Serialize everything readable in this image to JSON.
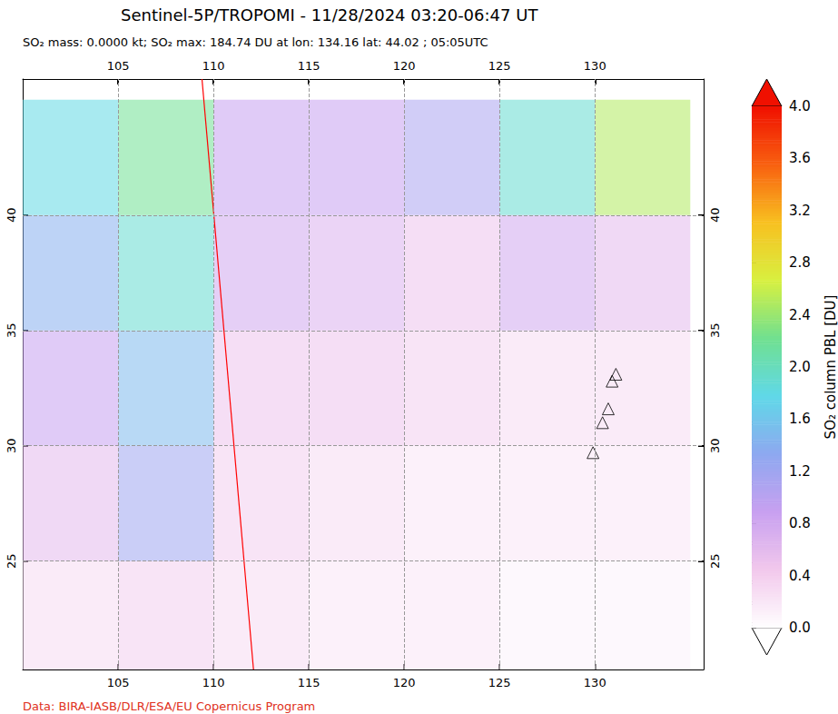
{
  "chart_data": {
    "type": "heatmap",
    "title": "Sentinel-5P/TROPOMI - 11/28/2024 03:20-06:47 UT",
    "subtitle": "SO₂ mass: 0.0000 kt; SO₂ max: 184.74 DU at lon: 134.16 lat: 44.02 ; 05:05UTC",
    "source": "Data: BIRA-IASB/DLR/ESA/EU Copernicus Program",
    "xlim": [
      100,
      135.7
    ],
    "ylim": [
      20.3,
      45.9
    ],
    "xticks": [
      105,
      110,
      115,
      120,
      125,
      130
    ],
    "yticks": [
      25,
      30,
      35,
      40
    ],
    "grid": true,
    "cells": {
      "x": [
        102.5,
        107.5,
        112.5,
        117.5,
        122.5,
        127.5,
        132.5
      ],
      "y": [
        22.5,
        27.5,
        32.5,
        37.5,
        42.5
      ],
      "values": [
        [
          0.3,
          0.4,
          0.3,
          0.2,
          0.2,
          0.1,
          0.1
        ],
        [
          0.6,
          1.2,
          0.4,
          0.3,
          0.2,
          0.2,
          0.2
        ],
        [
          0.9,
          1.5,
          0.5,
          0.5,
          0.4,
          0.3,
          0.3
        ],
        [
          1.4,
          1.9,
          0.8,
          0.7,
          0.5,
          0.8,
          0.6
        ],
        [
          1.8,
          2.2,
          0.9,
          0.9,
          1.1,
          1.9,
          2.5
        ]
      ]
    },
    "swath_edge": {
      "x": [
        109.4,
        112.1
      ],
      "y": [
        45.9,
        20.3
      ],
      "color": "#ff0000"
    },
    "volcanoes": {
      "x": [
        131.1,
        130.9,
        130.7,
        130.4,
        129.9
      ],
      "y": [
        33.1,
        32.8,
        31.6,
        31.0,
        29.7
      ],
      "marker": "triangle"
    },
    "colorbar": {
      "label": "SO₂ column PBL [DU]",
      "range": [
        0,
        4
      ],
      "ticks": [
        {
          "value": 0,
          "label": "0.0"
        },
        {
          "value": 0.4,
          "label": "0.4"
        },
        {
          "value": 0.8,
          "label": "0.8"
        },
        {
          "value": 1.2,
          "label": "1.2"
        },
        {
          "value": 1.6,
          "label": "1.6"
        },
        {
          "value": 2,
          "label": "2.0"
        },
        {
          "value": 2.4,
          "label": "2.4"
        },
        {
          "value": 2.8,
          "label": "2.8"
        },
        {
          "value": 3.2,
          "label": "3.2"
        },
        {
          "value": 3.6,
          "label": "3.6"
        },
        {
          "value": 4,
          "label": "4.0"
        }
      ],
      "colors": [
        "#ffffff",
        "#f2c8ec",
        "#c8a0f0",
        "#8ea8f0",
        "#60d8e8",
        "#70e090",
        "#d8f040",
        "#f8c020",
        "#f86010",
        "#f01000"
      ]
    }
  }
}
